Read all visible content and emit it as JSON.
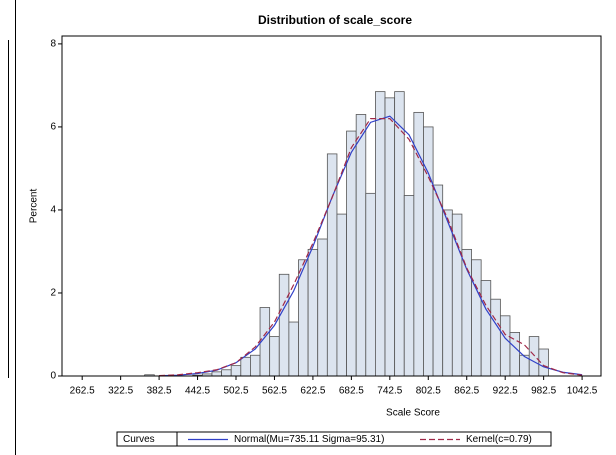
{
  "chart_data": {
    "type": "histogram",
    "title": "Distribution of scale_score",
    "xlabel": "Scale Score",
    "ylabel": "Percent",
    "bins": [
      360,
      375,
      390,
      405,
      420,
      435,
      450,
      465,
      480,
      495,
      510,
      525,
      540,
      555,
      570,
      585,
      600,
      615,
      630,
      645,
      660,
      675,
      690,
      705,
      720,
      735,
      750,
      765,
      780,
      795,
      810,
      825,
      840,
      855,
      870,
      885,
      900,
      915,
      930,
      945,
      960,
      975,
      990
    ],
    "values": [
      0.03,
      0,
      0,
      0,
      0,
      0.02,
      0.05,
      0.1,
      0.15,
      0.25,
      0.45,
      0.5,
      1.65,
      0.95,
      2.45,
      1.3,
      2.8,
      3.05,
      3.3,
      5.35,
      3.9,
      5.9,
      6.3,
      4.4,
      6.85,
      6.7,
      6.85,
      4.35,
      6.35,
      6.0,
      4.6,
      4.0,
      3.9,
      3.05,
      2.8,
      2.3,
      1.85,
      1.45,
      1.05,
      0.5,
      0.95,
      0.65
    ],
    "color": "#dce4ef",
    "xlim": [
      231,
      1072
    ],
    "ylim": [
      0,
      8.19
    ],
    "xticks": [
      262.5,
      322.5,
      382.5,
      442.5,
      502.5,
      562.5,
      622.5,
      682.5,
      742.5,
      802.5,
      862.5,
      922.5,
      982.5,
      1042.5
    ],
    "yticks": [
      0,
      2,
      4,
      6,
      8
    ],
    "legend_title": "Curves",
    "curves": {
      "x": [
        382.5,
        412.5,
        442.5,
        472.5,
        502.5,
        532.5,
        562.5,
        592.5,
        622.5,
        652.5,
        682.5,
        712.5,
        742.5,
        772.5,
        802.5,
        832.5,
        862.5,
        892.5,
        922.5,
        952.5,
        982.5,
        1012.5,
        1042.5
      ],
      "series": [
        {
          "name": "Normal(Mu=735.11 Sigma=95.31)",
          "color": "#3040c8",
          "dashed": false,
          "values": [
            0.007,
            0.02,
            0.06,
            0.14,
            0.32,
            0.65,
            1.22,
            2.05,
            3.12,
            4.31,
            5.39,
            6.11,
            6.26,
            5.81,
            4.89,
            3.73,
            2.57,
            1.61,
            0.91,
            0.47,
            0.22,
            0.09,
            0.03
          ]
        },
        {
          "name": "Kernel(c=0.79)",
          "color": "#a02848",
          "dashed": true,
          "values": [
            0.01,
            0.03,
            0.08,
            0.15,
            0.32,
            0.7,
            1.3,
            2.2,
            3.2,
            4.3,
            5.5,
            6.2,
            6.2,
            5.7,
            4.8,
            3.8,
            2.6,
            1.7,
            1.0,
            0.75,
            0.25,
            0.08,
            0.02
          ]
        }
      ]
    }
  }
}
